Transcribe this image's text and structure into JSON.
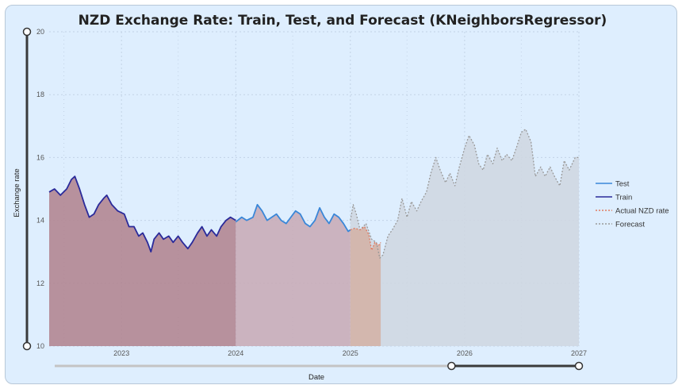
{
  "chart_data": {
    "type": "line",
    "title": "NZD Exchange Rate: Train, Test, and Forecast (KNeighborsRegressor)",
    "xlabel": "Date",
    "ylabel": "Exchange rate",
    "xlim": [
      "2022-05-15",
      "2027-01-01"
    ],
    "ylim": [
      10,
      20
    ],
    "x_tick_labels": [
      "2023",
      "2024",
      "2025",
      "2026",
      "2027"
    ],
    "y_tick_labels": [
      "10",
      "12",
      "14",
      "16",
      "18",
      "20"
    ],
    "grid": true,
    "legend_position": "right",
    "series": [
      {
        "name": "Test",
        "color": "#3a87d8",
        "fill": "#c8a8b4",
        "points": [
          [
            "2024-01-01",
            13.95
          ],
          [
            "2024-01-20",
            14.1
          ],
          [
            "2024-02-05",
            14.0
          ],
          [
            "2024-02-25",
            14.1
          ],
          [
            "2024-03-10",
            14.5
          ],
          [
            "2024-03-25",
            14.3
          ],
          [
            "2024-04-10",
            14.0
          ],
          [
            "2024-04-25",
            14.1
          ],
          [
            "2024-05-10",
            14.2
          ],
          [
            "2024-05-25",
            14.0
          ],
          [
            "2024-06-10",
            13.9
          ],
          [
            "2024-06-25",
            14.1
          ],
          [
            "2024-07-10",
            14.3
          ],
          [
            "2024-07-25",
            14.2
          ],
          [
            "2024-08-10",
            13.9
          ],
          [
            "2024-08-25",
            13.8
          ],
          [
            "2024-09-10",
            14.0
          ],
          [
            "2024-09-25",
            14.4
          ],
          [
            "2024-10-10",
            14.1
          ],
          [
            "2024-10-25",
            13.9
          ],
          [
            "2024-11-10",
            14.2
          ],
          [
            "2024-11-25",
            14.1
          ],
          [
            "2024-12-10",
            13.9
          ],
          [
            "2024-12-25",
            13.65
          ],
          [
            "2025-01-01",
            13.7
          ]
        ]
      },
      {
        "name": "Train",
        "color": "#2a2a9a",
        "fill": "#b0808c",
        "points": [
          [
            "2022-05-15",
            14.9
          ],
          [
            "2022-06-01",
            15.0
          ],
          [
            "2022-06-20",
            14.8
          ],
          [
            "2022-07-10",
            15.0
          ],
          [
            "2022-07-25",
            15.3
          ],
          [
            "2022-08-05",
            15.4
          ],
          [
            "2022-08-20",
            15.0
          ],
          [
            "2022-09-05",
            14.5
          ],
          [
            "2022-09-20",
            14.1
          ],
          [
            "2022-10-05",
            14.2
          ],
          [
            "2022-10-20",
            14.5
          ],
          [
            "2022-11-05",
            14.7
          ],
          [
            "2022-11-15",
            14.8
          ],
          [
            "2022-12-01",
            14.5
          ],
          [
            "2022-12-20",
            14.3
          ],
          [
            "2023-01-10",
            14.2
          ],
          [
            "2023-01-25",
            13.8
          ],
          [
            "2023-02-10",
            13.8
          ],
          [
            "2023-02-25",
            13.5
          ],
          [
            "2023-03-10",
            13.6
          ],
          [
            "2023-03-25",
            13.3
          ],
          [
            "2023-04-05",
            13.0
          ],
          [
            "2023-04-15",
            13.4
          ],
          [
            "2023-05-01",
            13.6
          ],
          [
            "2023-05-15",
            13.4
          ],
          [
            "2023-06-01",
            13.5
          ],
          [
            "2023-06-15",
            13.3
          ],
          [
            "2023-07-01",
            13.5
          ],
          [
            "2023-07-15",
            13.3
          ],
          [
            "2023-08-01",
            13.1
          ],
          [
            "2023-08-15",
            13.3
          ],
          [
            "2023-09-01",
            13.6
          ],
          [
            "2023-09-15",
            13.8
          ],
          [
            "2023-10-01",
            13.5
          ],
          [
            "2023-10-15",
            13.7
          ],
          [
            "2023-11-01",
            13.5
          ],
          [
            "2023-11-15",
            13.8
          ],
          [
            "2023-12-01",
            14.0
          ],
          [
            "2023-12-15",
            14.1
          ],
          [
            "2024-01-01",
            14.0
          ]
        ]
      },
      {
        "name": "Actual NZD rate",
        "color": "#e07a60",
        "fill": "#d4b0a4",
        "points": [
          [
            "2025-01-01",
            13.7
          ],
          [
            "2025-01-15",
            13.75
          ],
          [
            "2025-02-01",
            13.7
          ],
          [
            "2025-02-15",
            13.8
          ],
          [
            "2025-03-01",
            13.55
          ],
          [
            "2025-03-10",
            13.05
          ],
          [
            "2025-03-20",
            13.3
          ],
          [
            "2025-04-01",
            13.2
          ],
          [
            "2025-04-08",
            13.3
          ]
        ]
      },
      {
        "name": "Forecast",
        "color": "#999999",
        "fill": "#cfd6e0",
        "points": [
          [
            "2025-01-01",
            14.0
          ],
          [
            "2025-01-10",
            14.5
          ],
          [
            "2025-01-20",
            14.2
          ],
          [
            "2025-02-01",
            13.7
          ],
          [
            "2025-02-20",
            13.9
          ],
          [
            "2025-03-10",
            13.4
          ],
          [
            "2025-03-25",
            13.3
          ],
          [
            "2025-04-05",
            12.8
          ],
          [
            "2025-04-15",
            12.9
          ],
          [
            "2025-05-01",
            13.5
          ],
          [
            "2025-05-15",
            13.7
          ],
          [
            "2025-06-01",
            14.0
          ],
          [
            "2025-06-15",
            14.7
          ],
          [
            "2025-07-01",
            14.1
          ],
          [
            "2025-07-15",
            14.6
          ],
          [
            "2025-08-01",
            14.3
          ],
          [
            "2025-08-15",
            14.6
          ],
          [
            "2025-09-01",
            14.9
          ],
          [
            "2025-09-15",
            15.5
          ],
          [
            "2025-10-01",
            16.0
          ],
          [
            "2025-10-15",
            15.6
          ],
          [
            "2025-11-01",
            15.2
          ],
          [
            "2025-11-15",
            15.5
          ],
          [
            "2025-12-01",
            15.1
          ],
          [
            "2025-12-15",
            15.7
          ],
          [
            "2026-01-01",
            16.3
          ],
          [
            "2026-01-15",
            16.7
          ],
          [
            "2026-02-01",
            16.4
          ],
          [
            "2026-02-15",
            15.8
          ],
          [
            "2026-03-01",
            15.6
          ],
          [
            "2026-03-15",
            16.1
          ],
          [
            "2026-04-01",
            15.8
          ],
          [
            "2026-04-15",
            16.3
          ],
          [
            "2026-05-01",
            15.9
          ],
          [
            "2026-05-15",
            16.1
          ],
          [
            "2026-06-01",
            15.9
          ],
          [
            "2026-06-15",
            16.3
          ],
          [
            "2026-07-01",
            16.8
          ],
          [
            "2026-07-15",
            16.9
          ],
          [
            "2026-08-01",
            16.5
          ],
          [
            "2026-08-15",
            15.4
          ],
          [
            "2026-09-01",
            15.7
          ],
          [
            "2026-09-15",
            15.4
          ],
          [
            "2026-10-01",
            15.7
          ],
          [
            "2026-10-15",
            15.4
          ],
          [
            "2026-11-01",
            15.1
          ],
          [
            "2026-11-15",
            15.9
          ],
          [
            "2026-12-01",
            15.6
          ],
          [
            "2026-12-20",
            16.0
          ],
          [
            "2027-01-01",
            16.0
          ]
        ]
      }
    ]
  },
  "range_slider_y": {
    "start_value": 10,
    "end_value": 20
  },
  "range_slider_x": {
    "start_value": "2025-11-20",
    "end_value": "2027-01-01"
  }
}
